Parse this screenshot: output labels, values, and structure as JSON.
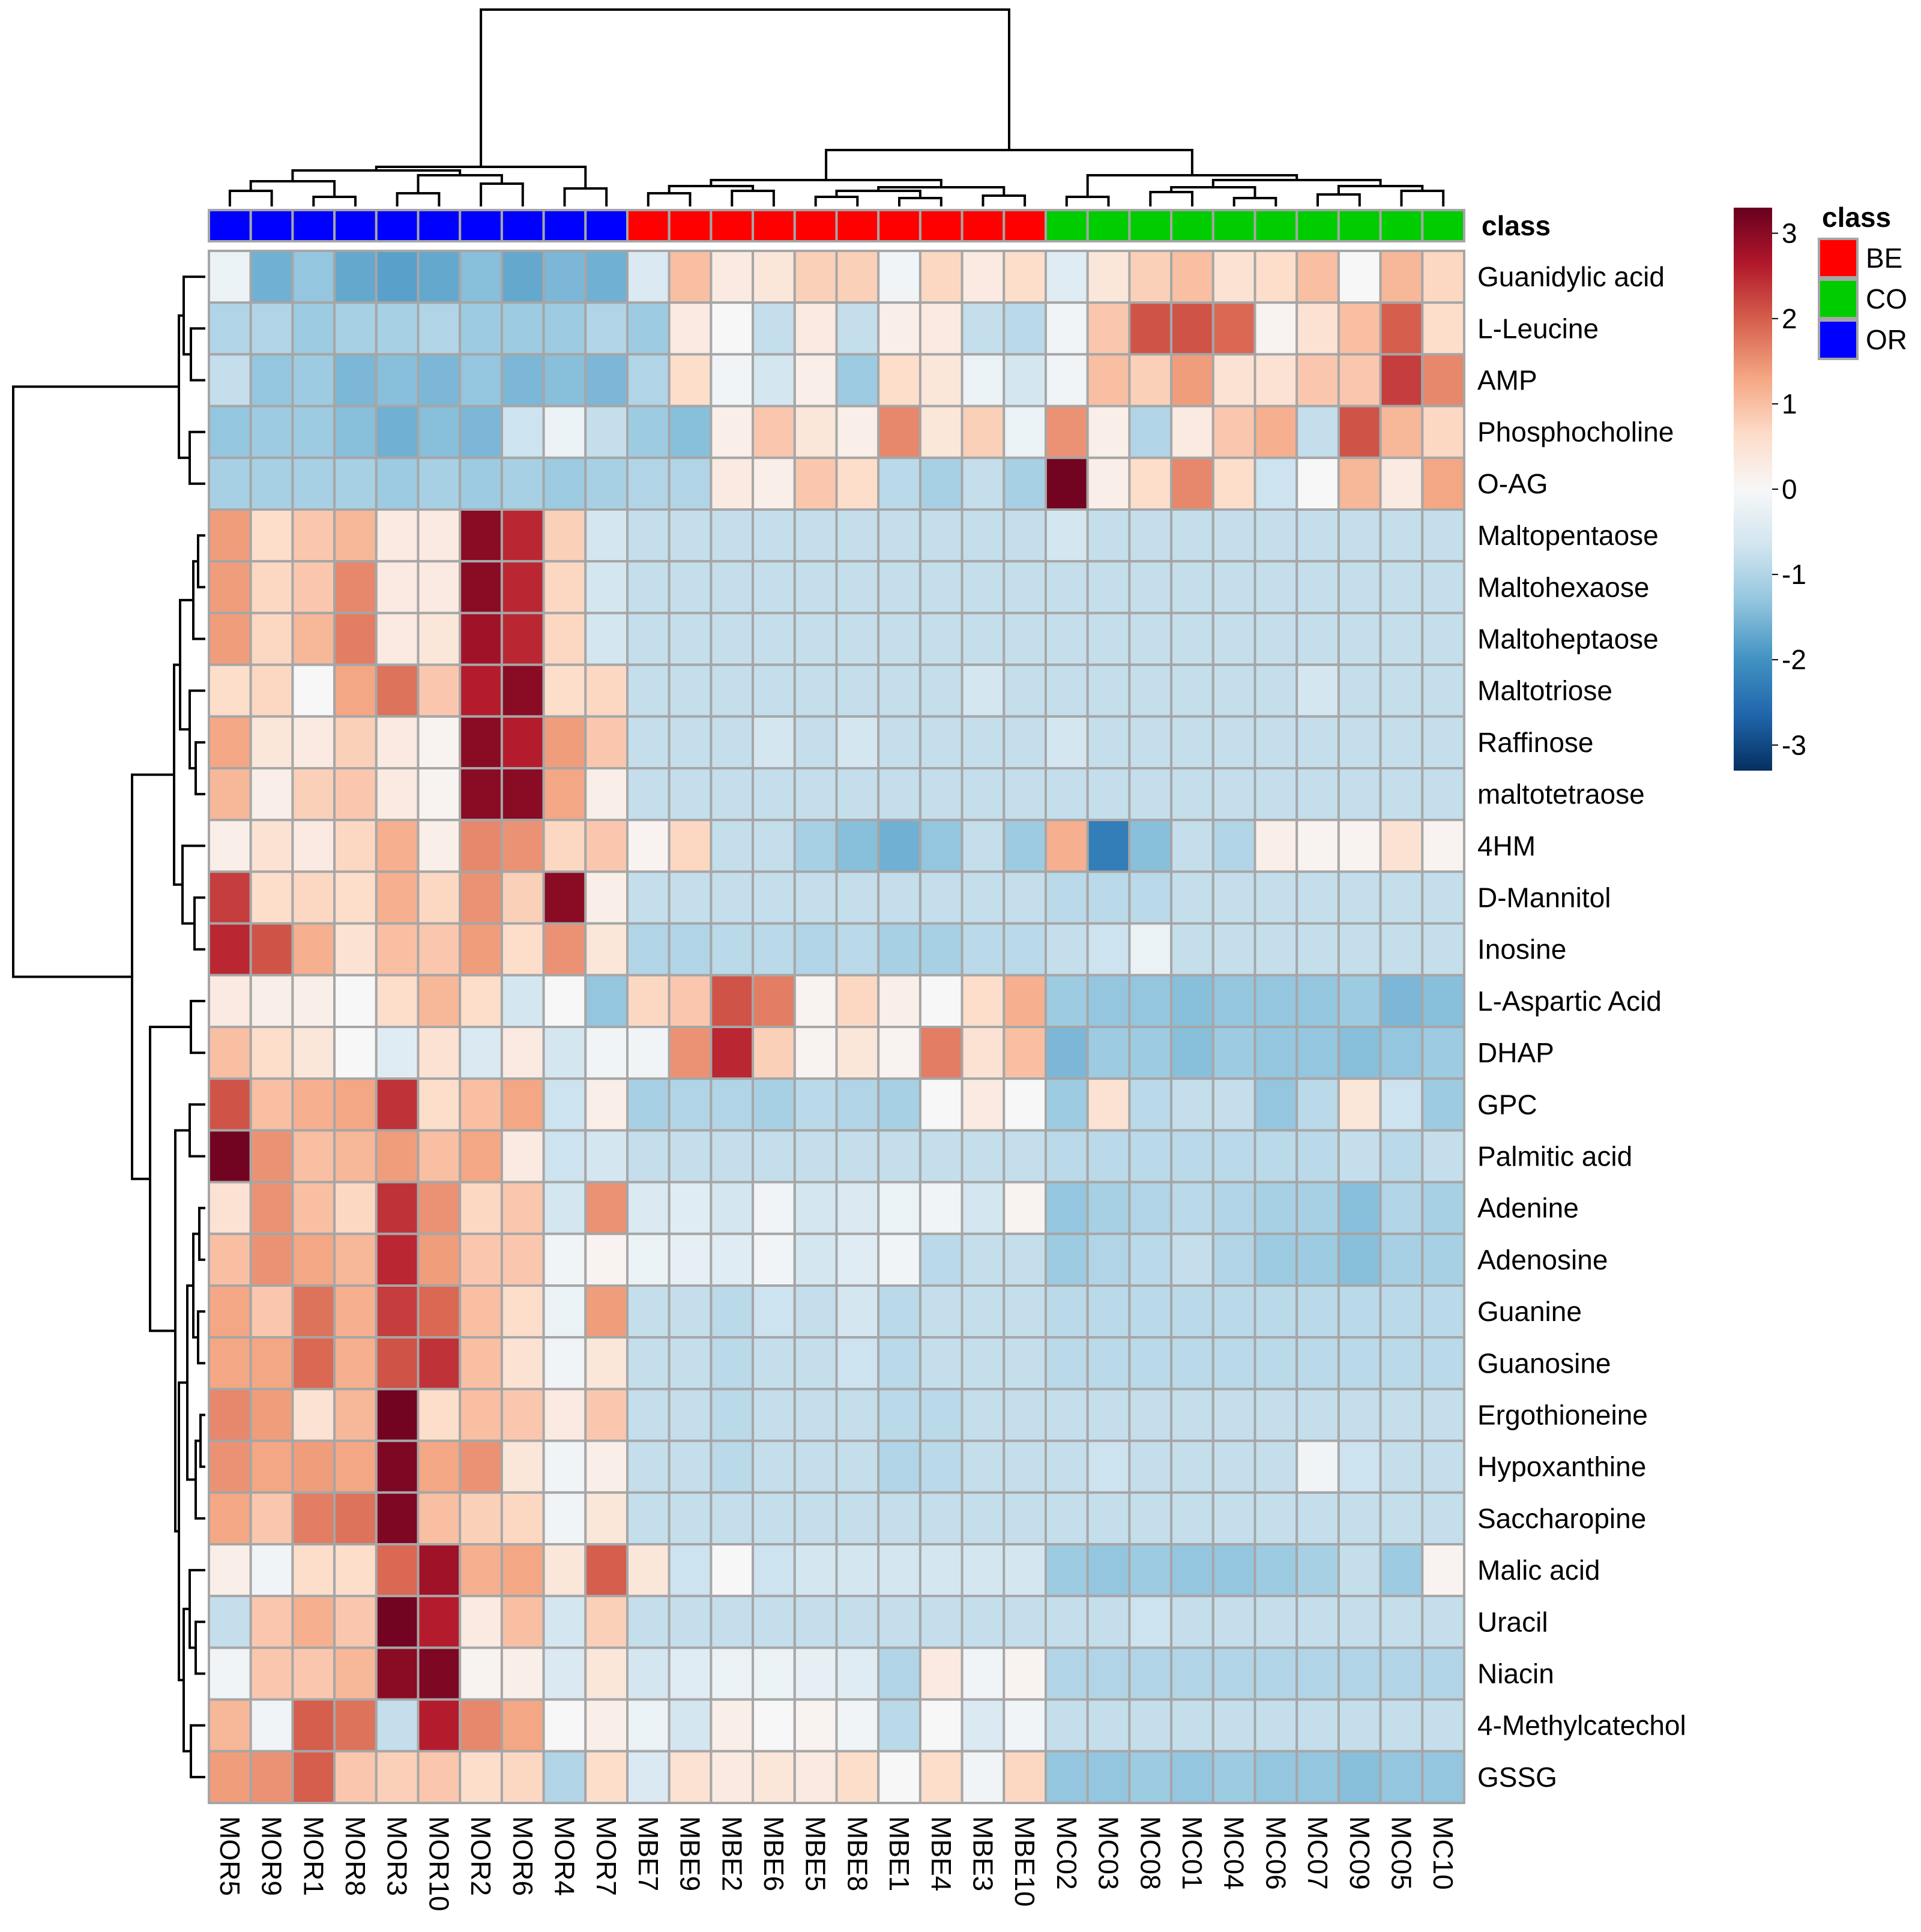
{
  "chart_data": {
    "type": "heatmap",
    "title": "",
    "columns": [
      "MOR5",
      "MOR9",
      "MOR1",
      "MOR8",
      "MOR3",
      "MOR10",
      "MOR2",
      "MOR6",
      "MOR4",
      "MOR7",
      "MBE7",
      "MBE9",
      "MBE2",
      "MBE6",
      "MBE5",
      "MBE8",
      "MBE1",
      "MBE4",
      "MBE3",
      "MBE10",
      "MC02",
      "MC03",
      "MC08",
      "MC01",
      "MC04",
      "MC06",
      "MC07",
      "MC09",
      "MC05",
      "MC10"
    ],
    "column_class": [
      "OR",
      "OR",
      "OR",
      "OR",
      "OR",
      "OR",
      "OR",
      "OR",
      "OR",
      "OR",
      "BE",
      "BE",
      "BE",
      "BE",
      "BE",
      "BE",
      "BE",
      "BE",
      "BE",
      "BE",
      "CO",
      "CO",
      "CO",
      "CO",
      "CO",
      "CO",
      "CO",
      "CO",
      "CO",
      "CO"
    ],
    "rows": [
      "Guanidylic acid",
      "L-Leucine",
      "AMP",
      "Phosphocholine",
      "O-AG",
      "Maltopentaose",
      "Maltohexaose",
      "Maltoheptaose",
      "Maltotriose",
      "Raffinose",
      "maltotetraose",
      "4HM",
      "D-Mannitol",
      "Inosine",
      "L-Aspartic Acid",
      "DHAP",
      "GPC",
      "Palmitic acid",
      "Adenine",
      "Adenosine",
      "Guanine",
      "Guanosine",
      "Ergothioneine",
      "Hypoxanthine",
      "Saccharopine",
      "Malic acid",
      "Uracil",
      "Niacin",
      "4-Methylcatechol",
      "GSSG"
    ],
    "values": [
      [
        -0.2,
        -1.6,
        -1.3,
        -1.7,
        -1.8,
        -1.7,
        -1.4,
        -1.7,
        -1.5,
        -1.6,
        -0.5,
        1.0,
        0.3,
        0.4,
        0.8,
        0.8,
        -0.1,
        0.7,
        0.3,
        0.6,
        -0.4,
        0.4,
        0.8,
        1.0,
        0.5,
        0.6,
        1.0,
        0.0,
        1.1,
        0.7
      ],
      [
        -1.0,
        -1.0,
        -1.2,
        -1.1,
        -1.1,
        -1.0,
        -1.2,
        -1.2,
        -1.2,
        -1.0,
        -1.2,
        0.3,
        0.0,
        -0.8,
        0.3,
        -0.8,
        0.2,
        0.3,
        -0.8,
        -0.9,
        -0.1,
        0.9,
        2.1,
        2.1,
        1.9,
        0.1,
        0.5,
        1.0,
        2.0,
        0.6
      ],
      [
        -0.8,
        -1.3,
        -1.2,
        -1.5,
        -1.4,
        -1.5,
        -1.3,
        -1.5,
        -1.4,
        -1.5,
        -1.0,
        0.6,
        -0.1,
        -0.6,
        0.2,
        -1.2,
        0.6,
        0.4,
        -0.2,
        -0.6,
        -0.1,
        1.0,
        0.8,
        1.4,
        0.5,
        0.5,
        0.9,
        0.9,
        2.3,
        1.6
      ],
      [
        -1.3,
        -1.2,
        -1.2,
        -1.4,
        -1.6,
        -1.4,
        -1.5,
        -0.7,
        -0.2,
        -0.8,
        -1.2,
        -1.4,
        0.2,
        0.9,
        0.4,
        0.2,
        1.6,
        0.4,
        0.8,
        -0.2,
        1.5,
        0.2,
        -1.0,
        0.3,
        0.9,
        1.2,
        -0.8,
        2.1,
        1.1,
        0.7
      ],
      [
        -1.1,
        -1.1,
        -1.1,
        -1.1,
        -1.2,
        -1.1,
        -1.2,
        -1.1,
        -1.2,
        -1.1,
        -1.0,
        -1.0,
        0.3,
        0.2,
        0.9,
        0.6,
        -0.9,
        -1.1,
        -0.8,
        -1.1,
        3.2,
        0.2,
        0.6,
        1.6,
        0.6,
        -0.7,
        0.0,
        1.1,
        0.3,
        1.3
      ],
      [
        1.4,
        0.6,
        0.9,
        1.1,
        0.3,
        0.3,
        3.0,
        2.5,
        0.8,
        -0.6,
        -0.8,
        -0.8,
        -0.8,
        -0.8,
        -0.8,
        -0.8,
        -0.8,
        -0.8,
        -0.8,
        -0.8,
        -0.6,
        -0.8,
        -0.8,
        -0.8,
        -0.8,
        -0.8,
        -0.8,
        -0.8,
        -0.8,
        -0.8
      ],
      [
        1.4,
        0.7,
        0.9,
        1.6,
        0.3,
        0.3,
        3.0,
        2.5,
        0.7,
        -0.6,
        -0.8,
        -0.8,
        -0.8,
        -0.8,
        -0.8,
        -0.8,
        -0.8,
        -0.8,
        -0.8,
        -0.8,
        -0.8,
        -0.8,
        -0.8,
        -0.8,
        -0.8,
        -0.8,
        -0.8,
        -0.8,
        -0.8,
        -0.8
      ],
      [
        1.4,
        0.7,
        1.1,
        1.7,
        0.3,
        0.4,
        2.8,
        2.5,
        0.7,
        -0.6,
        -0.8,
        -0.8,
        -0.8,
        -0.8,
        -0.8,
        -0.8,
        -0.8,
        -0.8,
        -0.8,
        -0.8,
        -0.8,
        -0.8,
        -0.8,
        -0.8,
        -0.8,
        -0.8,
        -0.8,
        -0.8,
        -0.8,
        -0.8
      ],
      [
        0.6,
        0.7,
        0.0,
        1.3,
        1.8,
        0.9,
        2.6,
        3.0,
        0.6,
        0.7,
        -0.8,
        -0.8,
        -0.8,
        -0.8,
        -0.8,
        -0.8,
        -0.8,
        -0.8,
        -0.6,
        -0.8,
        -0.8,
        -0.8,
        -0.8,
        -0.8,
        -0.8,
        -0.8,
        -0.6,
        -0.8,
        -0.8,
        -0.8
      ],
      [
        1.3,
        0.4,
        0.3,
        0.8,
        0.3,
        0.1,
        3.0,
        2.6,
        1.4,
        0.9,
        -0.8,
        -0.8,
        -0.8,
        -0.6,
        -0.8,
        -0.6,
        -0.8,
        -0.8,
        -0.8,
        -0.8,
        -0.6,
        -0.8,
        -0.8,
        -0.8,
        -0.8,
        -0.8,
        -0.8,
        -0.8,
        -0.8,
        -0.8
      ],
      [
        1.1,
        0.2,
        0.8,
        0.9,
        0.3,
        0.1,
        3.0,
        3.0,
        1.3,
        0.2,
        -0.8,
        -0.8,
        -0.8,
        -0.8,
        -0.8,
        -0.8,
        -0.8,
        -0.8,
        -0.8,
        -0.8,
        -0.8,
        -0.8,
        -0.8,
        -0.8,
        -0.8,
        -0.8,
        -0.8,
        -0.8,
        -0.8,
        -0.8
      ],
      [
        0.2,
        0.5,
        0.3,
        0.7,
        1.2,
        0.2,
        1.6,
        1.5,
        0.7,
        0.9,
        0.1,
        0.7,
        -0.8,
        -0.8,
        -1.1,
        -1.4,
        -1.6,
        -1.3,
        -0.8,
        -1.2,
        1.2,
        -2.3,
        -1.4,
        -0.8,
        -1.0,
        0.2,
        0.1,
        0.1,
        0.5,
        0.1
      ],
      [
        2.3,
        0.6,
        0.7,
        0.6,
        1.2,
        0.7,
        1.5,
        0.8,
        3.0,
        0.2,
        -0.8,
        -0.8,
        -0.8,
        -0.8,
        -0.8,
        -0.8,
        -0.8,
        -0.8,
        -0.8,
        -0.8,
        -0.9,
        -0.9,
        -0.9,
        -0.8,
        -0.8,
        -0.8,
        -0.8,
        -0.8,
        -0.8,
        -0.8
      ],
      [
        2.5,
        2.1,
        1.2,
        0.5,
        1.0,
        0.9,
        1.4,
        0.6,
        1.5,
        0.4,
        -1.0,
        -1.0,
        -0.9,
        -0.9,
        -1.0,
        -0.9,
        -1.1,
        -1.1,
        -0.9,
        -0.9,
        -0.8,
        -0.7,
        -0.2,
        -0.8,
        -0.8,
        -0.8,
        -0.8,
        -0.8,
        -0.8,
        -0.8
      ],
      [
        0.3,
        0.2,
        0.2,
        0.0,
        0.6,
        1.1,
        0.6,
        -0.6,
        0.0,
        -1.3,
        0.7,
        0.9,
        2.1,
        1.7,
        0.1,
        0.7,
        0.2,
        0.0,
        0.6,
        1.2,
        -1.2,
        -1.3,
        -1.3,
        -1.4,
        -1.3,
        -1.3,
        -1.3,
        -1.2,
        -1.5,
        -1.4
      ],
      [
        1.0,
        0.6,
        0.4,
        0.0,
        -0.4,
        0.5,
        -0.5,
        0.3,
        -0.6,
        -0.1,
        -0.1,
        1.5,
        2.5,
        0.8,
        0.1,
        0.4,
        0.1,
        1.7,
        0.5,
        1.0,
        -1.5,
        -1.2,
        -1.2,
        -1.4,
        -1.2,
        -1.3,
        -1.3,
        -1.4,
        -1.3,
        -1.2
      ],
      [
        2.1,
        1.0,
        1.2,
        1.3,
        2.4,
        0.6,
        1.0,
        1.3,
        -0.7,
        0.2,
        -1.1,
        -1.0,
        -1.0,
        -1.1,
        -0.9,
        -1.0,
        -1.1,
        0.0,
        0.3,
        0.0,
        -1.2,
        0.5,
        -0.9,
        -0.8,
        -0.8,
        -1.3,
        -0.9,
        0.4,
        -0.7,
        -1.2
      ],
      [
        3.2,
        1.5,
        1.0,
        1.1,
        1.4,
        1.0,
        1.3,
        0.3,
        -0.7,
        -0.6,
        -0.8,
        -0.8,
        -0.8,
        -0.8,
        -0.8,
        -0.8,
        -0.8,
        -0.8,
        -0.8,
        -0.8,
        -0.9,
        -0.9,
        -0.9,
        -0.9,
        -0.9,
        -0.9,
        -0.9,
        -0.8,
        -0.9,
        -0.8
      ],
      [
        0.5,
        1.5,
        1.0,
        0.7,
        2.4,
        1.5,
        0.7,
        0.9,
        -0.6,
        1.5,
        -0.5,
        -0.4,
        -0.6,
        -0.1,
        -0.6,
        -0.5,
        -0.2,
        -0.1,
        -0.6,
        0.1,
        -1.3,
        -1.1,
        -1.0,
        -0.9,
        -1.0,
        -1.1,
        -1.1,
        -1.4,
        -1.0,
        -1.1
      ],
      [
        1.0,
        1.5,
        1.3,
        1.1,
        2.5,
        1.4,
        0.9,
        0.9,
        -0.1,
        0.1,
        -0.2,
        -0.3,
        -0.4,
        -0.1,
        -0.6,
        -0.4,
        -0.1,
        -0.9,
        -0.8,
        -0.8,
        -1.2,
        -1.0,
        -0.9,
        -0.8,
        -1.0,
        -1.2,
        -1.2,
        -1.4,
        -1.1,
        -1.1
      ],
      [
        1.3,
        0.9,
        1.8,
        1.2,
        2.3,
        1.9,
        1.0,
        0.6,
        -0.2,
        1.4,
        -0.8,
        -0.8,
        -0.9,
        -0.7,
        -0.8,
        -0.6,
        -0.9,
        -0.8,
        -0.8,
        -0.8,
        -0.9,
        -0.9,
        -0.9,
        -0.9,
        -0.9,
        -0.9,
        -0.9,
        -0.9,
        -0.9,
        -0.9
      ],
      [
        1.3,
        1.3,
        1.9,
        1.2,
        2.1,
        2.4,
        1.0,
        0.5,
        -0.1,
        0.4,
        -0.8,
        -0.8,
        -0.9,
        -0.8,
        -0.8,
        -0.7,
        -0.9,
        -0.8,
        -0.8,
        -0.8,
        -0.9,
        -0.9,
        -0.9,
        -0.9,
        -0.9,
        -0.9,
        -0.9,
        -0.9,
        -0.9,
        -0.9
      ],
      [
        1.6,
        1.4,
        0.5,
        1.1,
        3.2,
        0.6,
        1.0,
        0.9,
        0.3,
        0.9,
        -0.8,
        -0.8,
        -0.9,
        -0.8,
        -0.8,
        -0.8,
        -0.9,
        -0.9,
        -0.8,
        -0.8,
        -0.8,
        -0.8,
        -0.8,
        -0.8,
        -0.8,
        -0.8,
        -0.8,
        -0.8,
        -0.8,
        -0.8
      ],
      [
        1.5,
        1.3,
        1.4,
        1.3,
        3.1,
        1.3,
        1.5,
        0.4,
        -0.1,
        0.2,
        -0.8,
        -0.8,
        -0.9,
        -0.8,
        -0.8,
        -0.8,
        -1.0,
        -0.9,
        -0.8,
        -0.8,
        -0.8,
        -0.7,
        -0.8,
        -0.8,
        -0.8,
        -0.8,
        -0.1,
        -0.7,
        -0.8,
        -0.8
      ],
      [
        1.3,
        0.9,
        1.7,
        1.8,
        3.1,
        1.0,
        0.8,
        0.7,
        -0.1,
        0.4,
        -0.8,
        -0.8,
        -0.8,
        -0.8,
        -0.8,
        -0.8,
        -0.8,
        -0.8,
        -0.8,
        -0.8,
        -0.8,
        -0.8,
        -0.8,
        -0.8,
        -0.8,
        -0.8,
        -0.8,
        -0.8,
        -0.8,
        -0.8
      ],
      [
        0.2,
        -0.1,
        0.6,
        0.6,
        1.9,
        2.8,
        1.2,
        1.3,
        0.4,
        2.0,
        0.4,
        -0.7,
        0.0,
        -0.7,
        -0.6,
        -0.6,
        -0.6,
        -0.6,
        -0.6,
        -0.6,
        -1.2,
        -1.3,
        -1.2,
        -1.3,
        -1.3,
        -1.2,
        -1.1,
        -0.8,
        -1.2,
        0.1
      ],
      [
        -0.8,
        0.9,
        1.2,
        0.9,
        3.2,
        2.6,
        0.3,
        1.0,
        -0.6,
        0.8,
        -0.8,
        -0.8,
        -0.8,
        -0.8,
        -0.8,
        -0.8,
        -0.8,
        -0.8,
        -0.8,
        -0.8,
        -0.8,
        -0.8,
        -0.7,
        -0.8,
        -0.8,
        -0.8,
        -0.8,
        -0.8,
        -0.8,
        -0.8
      ],
      [
        -0.1,
        0.9,
        0.9,
        1.1,
        3.0,
        3.1,
        0.1,
        0.2,
        -0.5,
        0.4,
        -0.6,
        -0.4,
        -0.2,
        -0.2,
        -0.3,
        -0.4,
        -1.0,
        0.3,
        -0.1,
        0.1,
        -1.0,
        -1.0,
        -1.0,
        -1.0,
        -1.0,
        -1.0,
        -1.0,
        -1.0,
        -1.0,
        -1.0
      ],
      [
        1.1,
        -0.1,
        2.0,
        1.8,
        -0.8,
        2.6,
        1.6,
        1.3,
        0.0,
        0.2,
        -0.2,
        -0.6,
        0.2,
        0.0,
        0.1,
        -0.1,
        -0.9,
        0.0,
        -0.5,
        -0.1,
        -0.8,
        -0.8,
        -0.8,
        -0.8,
        -0.8,
        -0.8,
        -0.8,
        -0.8,
        -0.8,
        -0.8
      ],
      [
        1.4,
        1.5,
        2.0,
        0.9,
        0.8,
        0.9,
        0.6,
        0.7,
        -1.0,
        0.6,
        -0.5,
        0.5,
        0.3,
        0.4,
        0.3,
        0.6,
        0.0,
        0.6,
        -0.1,
        0.7,
        -1.3,
        -1.3,
        -1.2,
        -1.3,
        -1.2,
        -1.3,
        -1.3,
        -1.4,
        -1.3,
        -1.3
      ]
    ],
    "class_label": "class",
    "legend": [
      {
        "name": "BE",
        "color": "#ff0000"
      },
      {
        "name": "CO",
        "color": "#00cd00"
      },
      {
        "name": "OR",
        "color": "#0000ff"
      }
    ],
    "color_scale": {
      "range": [
        -3.3,
        3.3
      ],
      "ticks": [
        3,
        2,
        1,
        0,
        -1,
        -2,
        -3
      ],
      "tick_labels": [
        "3",
        "2",
        "1",
        "0",
        "-1",
        "-2",
        "-3"
      ],
      "colors": [
        "#053061",
        "#2166ac",
        "#4393c3",
        "#92c5de",
        "#d1e5f0",
        "#f7f7f7",
        "#fddbc7",
        "#f4a582",
        "#d6604d",
        "#b2182b",
        "#67001f"
      ]
    },
    "column_dendrogram": [
      [
        0,
        1
      ],
      [
        2,
        3
      ],
      [
        -2,
        -1
      ],
      [
        4,
        5
      ],
      [
        -3,
        -4
      ],
      [
        6,
        7
      ],
      [
        8,
        9
      ],
      [
        -6,
        -7
      ],
      [
        -5,
        -8
      ],
      [
        -9,
        -1000
      ],
      [
        10,
        11
      ],
      [
        12,
        13
      ],
      [
        14,
        15
      ],
      [
        16,
        17
      ],
      [
        18,
        19
      ],
      [
        -11,
        -12
      ],
      [
        -13,
        -14
      ],
      [
        -15,
        -16
      ],
      [
        -17,
        -18
      ],
      [
        -19,
        -20
      ],
      [
        20,
        21
      ],
      [
        22,
        23
      ],
      [
        24,
        25
      ],
      [
        26,
        27
      ],
      [
        28,
        29
      ],
      [
        -21,
        -22
      ],
      [
        -23,
        -24
      ],
      [
        -25,
        -26
      ],
      [
        -27,
        -28
      ],
      [
        -29,
        -30
      ]
    ],
    "row_dendrogram_note": "hierarchical clustering of rows"
  }
}
